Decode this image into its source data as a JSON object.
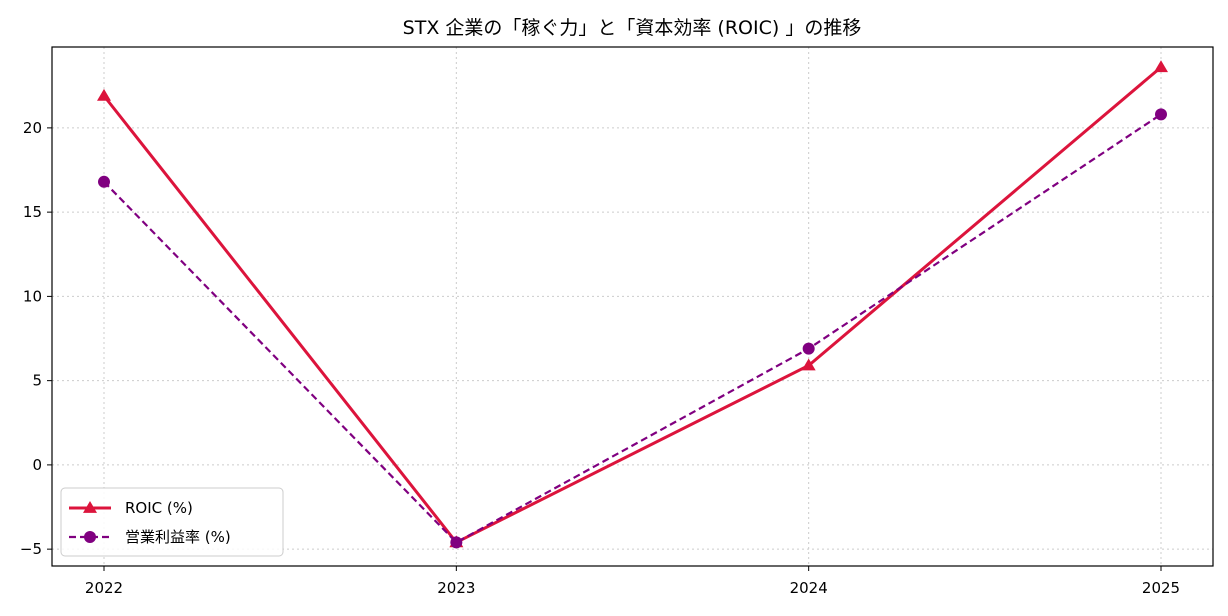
{
  "chart_data": {
    "type": "line",
    "title": "STX 企業の「稼ぐ力」と「資本効率 (ROIC) 」の推移",
    "xlabel": "",
    "ylabel": "",
    "categories": [
      "2022",
      "2023",
      "2024",
      "2025"
    ],
    "ylim": [
      -6,
      24.8
    ],
    "yticks": [
      -5,
      0,
      5,
      10,
      15,
      20
    ],
    "grid": true,
    "legend_position": "lower-left",
    "series": [
      {
        "name": "ROIC (%)",
        "values": [
          21.9,
          -4.6,
          5.9,
          23.6
        ],
        "color": "#dc143c",
        "marker": "triangle",
        "line_style": "solid"
      },
      {
        "name": "営業利益率 (%)",
        "values": [
          16.8,
          -4.6,
          6.9,
          20.8
        ],
        "color": "#800080",
        "marker": "circle",
        "line_style": "dashed"
      }
    ]
  }
}
